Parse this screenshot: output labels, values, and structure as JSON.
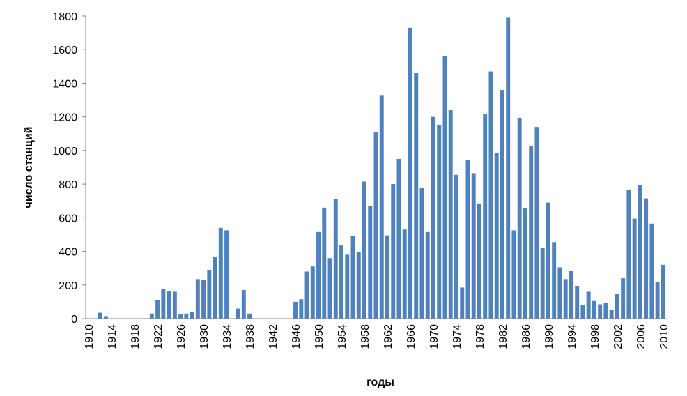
{
  "chart_data": {
    "type": "bar",
    "x_label": "годы",
    "y_label": "число станций",
    "categories": [
      "1910",
      null,
      null,
      null,
      "1914",
      null,
      null,
      null,
      "1918",
      null,
      null,
      null,
      "1922",
      null,
      null,
      null,
      "1926",
      null,
      null,
      null,
      "1930",
      null,
      null,
      null,
      "1934",
      null,
      null,
      null,
      "1938",
      null,
      null,
      null,
      "1942",
      null,
      null,
      null,
      "1946",
      null,
      null,
      null,
      "1950",
      null,
      null,
      null,
      "1954",
      null,
      null,
      null,
      "1958",
      null,
      null,
      null,
      "1962",
      null,
      null,
      null,
      "1966",
      null,
      null,
      null,
      "1970",
      null,
      null,
      null,
      "1974",
      null,
      null,
      null,
      "1978",
      null,
      null,
      null,
      "1982",
      null,
      null,
      null,
      "1986",
      null,
      null,
      null,
      "1990",
      null,
      null,
      null,
      "1994",
      null,
      null,
      null,
      "1998",
      null,
      null,
      null,
      "2002",
      null,
      null,
      null,
      "2006",
      null,
      null,
      null,
      "2010"
    ],
    "values": [
      0,
      0,
      35,
      15,
      0,
      0,
      0,
      0,
      0,
      0,
      0,
      30,
      110,
      175,
      165,
      160,
      25,
      30,
      40,
      235,
      230,
      290,
      365,
      540,
      525,
      0,
      60,
      170,
      30,
      0,
      0,
      0,
      0,
      0,
      0,
      0,
      100,
      115,
      280,
      310,
      515,
      660,
      360,
      710,
      435,
      380,
      490,
      395,
      815,
      670,
      1110,
      1330,
      495,
      800,
      950,
      530,
      1730,
      1460,
      780,
      515,
      1200,
      1150,
      1560,
      1240,
      855,
      185,
      945,
      865,
      685,
      1215,
      1470,
      985,
      1360,
      1790,
      525,
      1195,
      655,
      1025,
      1140,
      420,
      690,
      455,
      305,
      235,
      285,
      195,
      80,
      160,
      105,
      85,
      95,
      50,
      145,
      240,
      765,
      595,
      795,
      715,
      565,
      220,
      320
    ],
    "color": "#4f81bd",
    "ylim": [
      0,
      1800
    ],
    "yticks": [
      0,
      200,
      400,
      600,
      800,
      1000,
      1200,
      1400,
      1600,
      1800
    ],
    "grid": false
  }
}
